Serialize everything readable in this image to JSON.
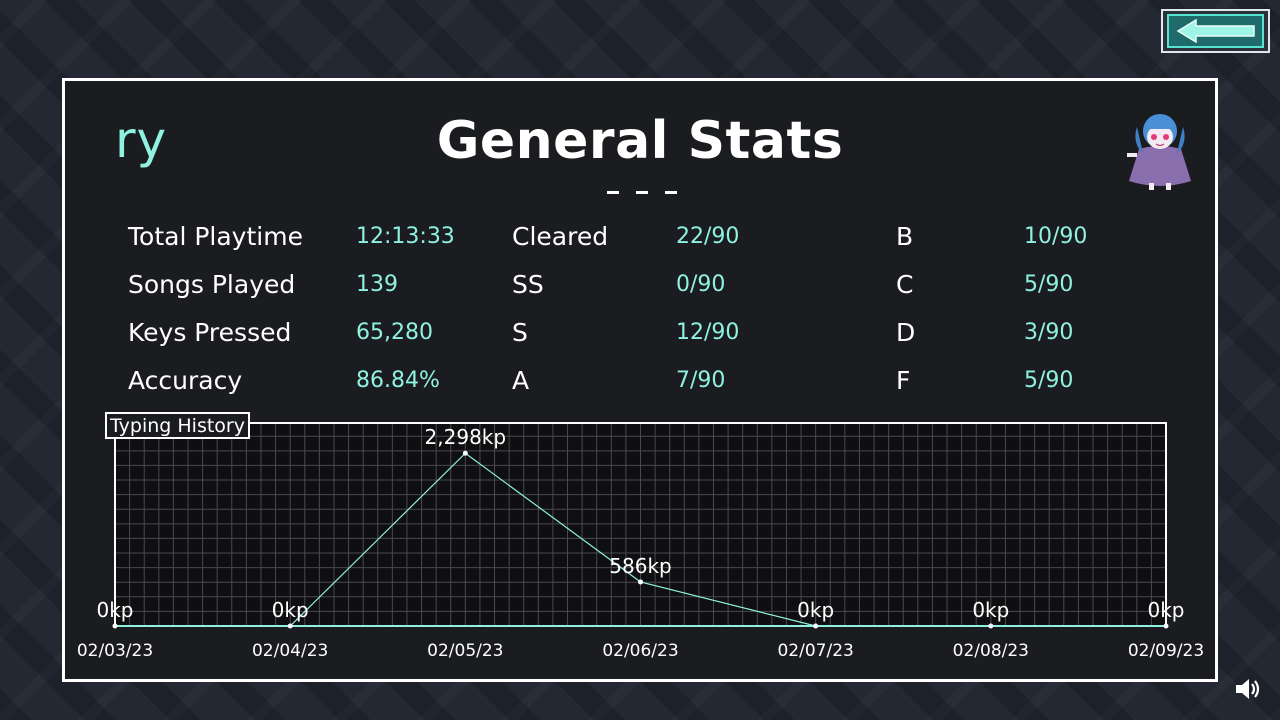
{
  "header": {
    "username": "ry",
    "title": "General Stats"
  },
  "icons": {
    "back": "back-arrow-icon",
    "volume": "speaker-icon",
    "avatar": "character-avatar"
  },
  "colors": {
    "accent": "#8ff2e0",
    "grade_a": "#34c8ee",
    "grade_b": "#5fd3ea",
    "grade_c": "#f3ee66",
    "grade_d": "#9c86ef",
    "grade_f": "#f0889a"
  },
  "stats": {
    "total_playtime": {
      "label": "Total Playtime",
      "value": "12:13:33"
    },
    "songs_played": {
      "label": "Songs Played",
      "value": "139"
    },
    "keys_pressed": {
      "label": "Keys Pressed",
      "value": "65,280"
    },
    "accuracy": {
      "label": "Accuracy",
      "value": "86.84%"
    }
  },
  "grades": {
    "cleared": {
      "label": "Cleared",
      "value": "22/90"
    },
    "ss": {
      "label": "SS",
      "value": "0/90"
    },
    "s": {
      "label": "S",
      "value": "12/90"
    },
    "a": {
      "label": "A",
      "value": "7/90"
    },
    "b": {
      "label": "B",
      "value": "10/90"
    },
    "c": {
      "label": "C",
      "value": "5/90"
    },
    "d": {
      "label": "D",
      "value": "3/90"
    },
    "f": {
      "label": "F",
      "value": "5/90"
    }
  },
  "chart_data": {
    "type": "line",
    "title": "Typing History",
    "x": [
      "02/03/23",
      "02/04/23",
      "02/05/23",
      "02/06/23",
      "02/07/23",
      "02/08/23",
      "02/09/23"
    ],
    "values": [
      0,
      0,
      2298,
      586,
      0,
      0,
      0
    ],
    "point_labels": [
      "0kp",
      "0kp",
      "2,298kp",
      "586kp",
      "0kp",
      "0kp",
      "0kp"
    ],
    "ylim": [
      0,
      2700
    ],
    "grid": true,
    "line_color": "#8ff2e0"
  }
}
